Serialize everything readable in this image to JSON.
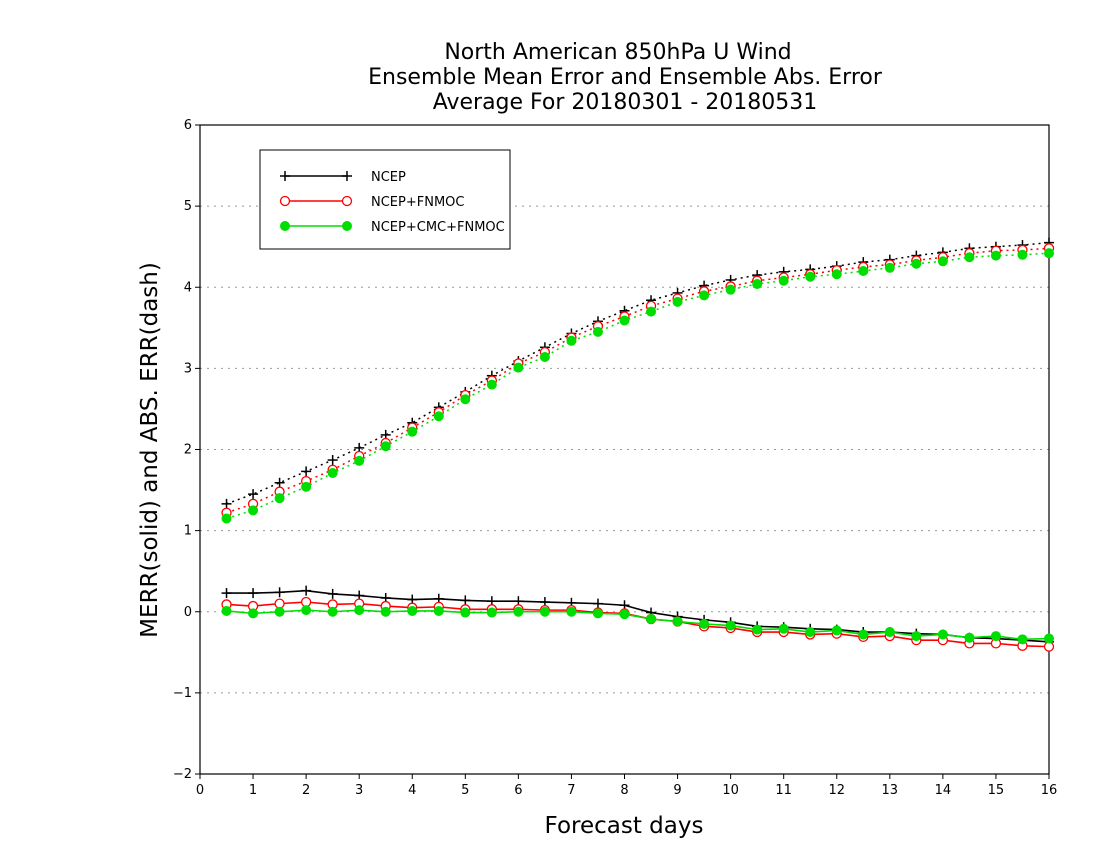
{
  "chart_data": {
    "type": "line",
    "title_lines": [
      "North American 850hPa U Wind",
      "Ensemble Mean Error and Ensemble Abs. Error",
      "Average For 20180301 - 20180531"
    ],
    "xlabel": "Forecast days",
    "ylabel": "MERR(solid) and ABS. ERR(dash)",
    "xlim": [
      0,
      16
    ],
    "ylim": [
      -2,
      6
    ],
    "xticks": [
      0,
      1,
      2,
      3,
      4,
      5,
      6,
      7,
      8,
      9,
      10,
      11,
      12,
      13,
      14,
      15,
      16
    ],
    "yticks": [
      -2,
      -1,
      0,
      1,
      2,
      3,
      4,
      5,
      6
    ],
    "grid": "horizontal dotted",
    "legend_position": "top-left",
    "x": [
      0.5,
      1,
      1.5,
      2,
      2.5,
      3,
      3.5,
      4,
      4.5,
      5,
      5.5,
      6,
      6.5,
      7,
      7.5,
      8,
      8.5,
      9,
      9.5,
      10,
      10.5,
      11,
      11.5,
      12,
      12.5,
      13,
      13.5,
      14,
      14.5,
      15,
      15.5,
      16
    ],
    "series": [
      {
        "name": "NCEP",
        "color": "#000000",
        "marker": "plus",
        "merr": [
          0.23,
          0.23,
          0.24,
          0.26,
          0.22,
          0.2,
          0.17,
          0.15,
          0.16,
          0.14,
          0.13,
          0.13,
          0.12,
          0.11,
          0.1,
          0.08,
          -0.01,
          -0.06,
          -0.1,
          -0.13,
          -0.18,
          -0.19,
          -0.21,
          -0.22,
          -0.25,
          -0.25,
          -0.27,
          -0.28,
          -0.32,
          -0.33,
          -0.35,
          -0.37
        ],
        "abs_err": [
          1.33,
          1.45,
          1.59,
          1.73,
          1.87,
          2.02,
          2.18,
          2.33,
          2.52,
          2.71,
          2.91,
          3.09,
          3.26,
          3.43,
          3.58,
          3.71,
          3.84,
          3.93,
          4.02,
          4.09,
          4.15,
          4.19,
          4.22,
          4.26,
          4.31,
          4.34,
          4.39,
          4.43,
          4.48,
          4.5,
          4.52,
          4.55
        ]
      },
      {
        "name": "NCEP+FNMOC",
        "color": "#ff0000",
        "marker": "open-circle",
        "merr": [
          0.09,
          0.07,
          0.1,
          0.12,
          0.09,
          0.1,
          0.07,
          0.05,
          0.06,
          0.03,
          0.03,
          0.03,
          0.02,
          0.02,
          -0.01,
          -0.02,
          -0.09,
          -0.12,
          -0.18,
          -0.2,
          -0.25,
          -0.25,
          -0.28,
          -0.27,
          -0.31,
          -0.3,
          -0.35,
          -0.35,
          -0.39,
          -0.39,
          -0.42,
          -0.43
        ],
        "abs_err": [
          1.22,
          1.33,
          1.48,
          1.61,
          1.75,
          1.92,
          2.08,
          2.27,
          2.46,
          2.67,
          2.85,
          3.06,
          3.2,
          3.38,
          3.52,
          3.64,
          3.77,
          3.86,
          3.95,
          4.01,
          4.08,
          4.12,
          4.16,
          4.21,
          4.25,
          4.28,
          4.33,
          4.37,
          4.42,
          4.45,
          4.46,
          4.48
        ]
      },
      {
        "name": "NCEP+CMC+FNMOC",
        "color": "#00dd00",
        "marker": "filled-circle",
        "merr": [
          0.01,
          -0.02,
          0.0,
          0.02,
          0.0,
          0.02,
          0.0,
          0.01,
          0.01,
          -0.01,
          -0.01,
          0.0,
          0.0,
          0.0,
          -0.02,
          -0.03,
          -0.09,
          -0.12,
          -0.15,
          -0.17,
          -0.22,
          -0.21,
          -0.25,
          -0.23,
          -0.28,
          -0.25,
          -0.3,
          -0.28,
          -0.32,
          -0.3,
          -0.34,
          -0.33
        ],
        "abs_err": [
          1.15,
          1.25,
          1.4,
          1.54,
          1.71,
          1.86,
          2.04,
          2.22,
          2.41,
          2.62,
          2.8,
          3.01,
          3.14,
          3.34,
          3.45,
          3.59,
          3.7,
          3.82,
          3.9,
          3.97,
          4.04,
          4.08,
          4.13,
          4.16,
          4.2,
          4.24,
          4.29,
          4.32,
          4.37,
          4.39,
          4.4,
          4.42
        ]
      }
    ]
  }
}
